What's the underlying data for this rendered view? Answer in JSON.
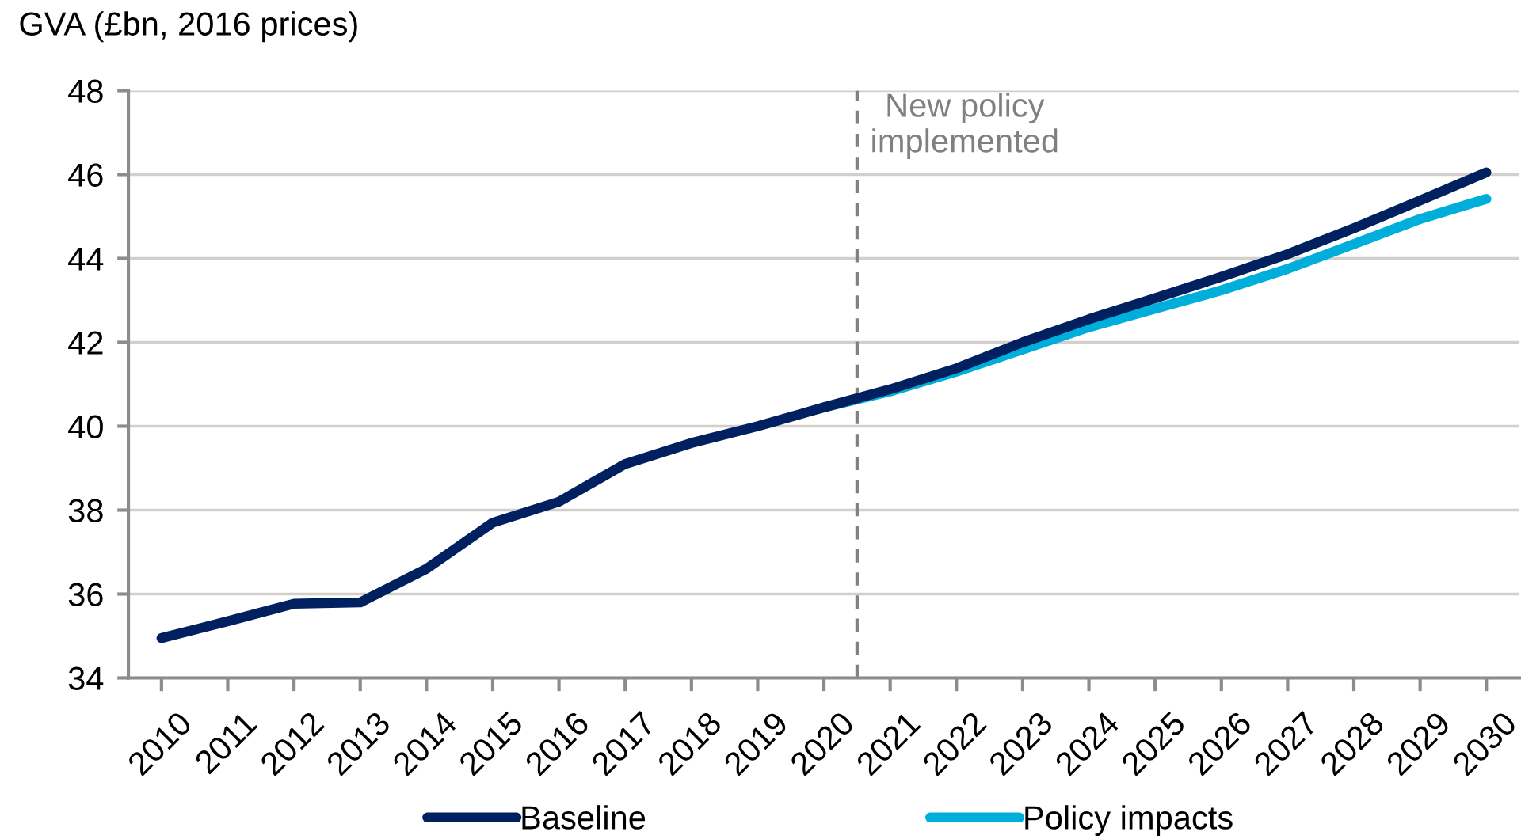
{
  "chart_data": {
    "type": "line",
    "ylabel": "GVA (£bn, 2016 prices)",
    "x": [
      2010,
      2011,
      2012,
      2013,
      2014,
      2015,
      2016,
      2017,
      2018,
      2019,
      2020,
      2021,
      2022,
      2023,
      2024,
      2025,
      2026,
      2027,
      2028,
      2029,
      2030
    ],
    "xlim": [
      2009.5,
      2030.5
    ],
    "xticks": [
      2010,
      2011,
      2012,
      2013,
      2014,
      2015,
      2016,
      2017,
      2018,
      2019,
      2020,
      2021,
      2022,
      2023,
      2024,
      2025,
      2026,
      2027,
      2028,
      2029,
      2030
    ],
    "ylim": [
      34,
      48
    ],
    "yticks": [
      34,
      36,
      38,
      40,
      42,
      44,
      46,
      48
    ],
    "grid": "y",
    "legend": "bottom",
    "line_style": "solid",
    "ref_lines": [
      {
        "axis": "x",
        "value": 2020.5,
        "label": "New policy\nimplemented",
        "color": "#808080",
        "line_style": "dashed"
      }
    ],
    "series": [
      {
        "name": "Baseline",
        "color": "#002060",
        "values": [
          34.95,
          35.35,
          35.77,
          35.8,
          36.6,
          37.7,
          38.2,
          39.1,
          39.6,
          40.0,
          40.45,
          40.88,
          41.38,
          42.0,
          42.55,
          43.05,
          43.56,
          44.1,
          44.72,
          45.38,
          46.05
        ]
      },
      {
        "name": "Policy impacts",
        "color": "#00aedb",
        "values": [
          null,
          null,
          null,
          null,
          null,
          null,
          null,
          null,
          null,
          null,
          40.45,
          40.83,
          41.3,
          41.83,
          42.36,
          42.8,
          43.24,
          43.75,
          44.34,
          44.94,
          45.42
        ]
      }
    ]
  }
}
